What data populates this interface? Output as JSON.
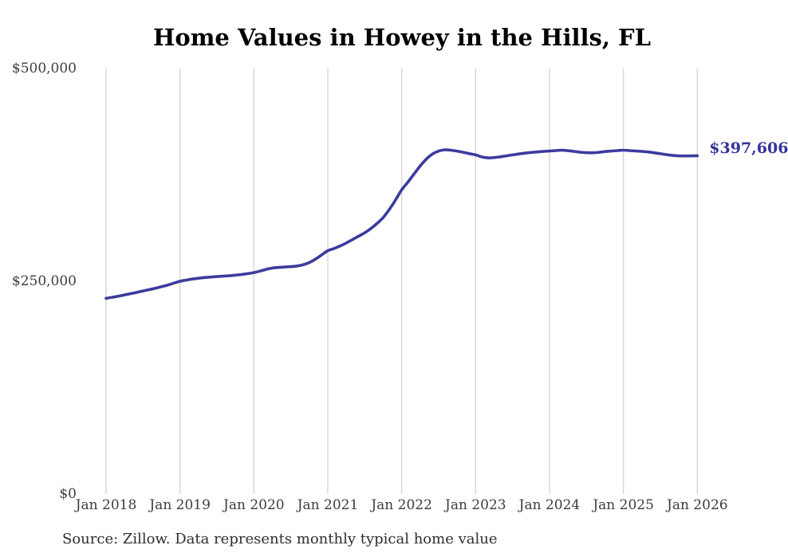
{
  "chart_data": {
    "type": "line",
    "title": "Home Values in Howey in the Hills, FL",
    "xlabel": "",
    "ylabel": "",
    "ylim": [
      0,
      500000
    ],
    "grid": "vertical-only",
    "y_tick_labels": [
      "$0",
      "$250,000",
      "$500,000"
    ],
    "x_tick_labels": [
      "Jan 2018",
      "Jan 2019",
      "Jan 2020",
      "Jan 2021",
      "Jan 2022",
      "Jan 2023",
      "Jan 2024",
      "Jan 2025",
      "Jan 2026"
    ],
    "end_label": "$397,606",
    "line_color": "#3b3b9e",
    "end_label_color": "#33339b",
    "gridline_color": "#d4d4d4",
    "source_note": "Source: Zillow. Data represents monthly typical home value",
    "series": [
      {
        "name": "Monthly typical home value",
        "start": "2018-01",
        "end": "2026-01",
        "interval": "monthly",
        "values": [
          230000,
          231200,
          232500,
          234000,
          235500,
          237000,
          238600,
          240200,
          241800,
          243600,
          245600,
          247800,
          250000,
          251400,
          252600,
          253600,
          254400,
          255000,
          255500,
          256000,
          256500,
          257200,
          258000,
          259000,
          260200,
          262000,
          264000,
          265500,
          266300,
          266800,
          267200,
          268000,
          269500,
          272000,
          276000,
          281000,
          286000,
          288500,
          291500,
          295000,
          299000,
          303000,
          307000,
          312000,
          318000,
          325000,
          334500,
          345500,
          357500,
          366500,
          376000,
          385500,
          393500,
          399500,
          403000,
          404500,
          404000,
          403000,
          401500,
          400000,
          398500,
          396200,
          395000,
          395400,
          396300,
          397400,
          398500,
          399600,
          400600,
          401400,
          402000,
          402600,
          403100,
          403600,
          404000,
          403500,
          402600,
          401700,
          401100,
          401000,
          401500,
          402400,
          403000,
          403600,
          404000,
          403600,
          403100,
          402600,
          402000,
          401000,
          399900,
          398800,
          397900,
          397400,
          397300,
          397400,
          397606
        ]
      }
    ]
  }
}
